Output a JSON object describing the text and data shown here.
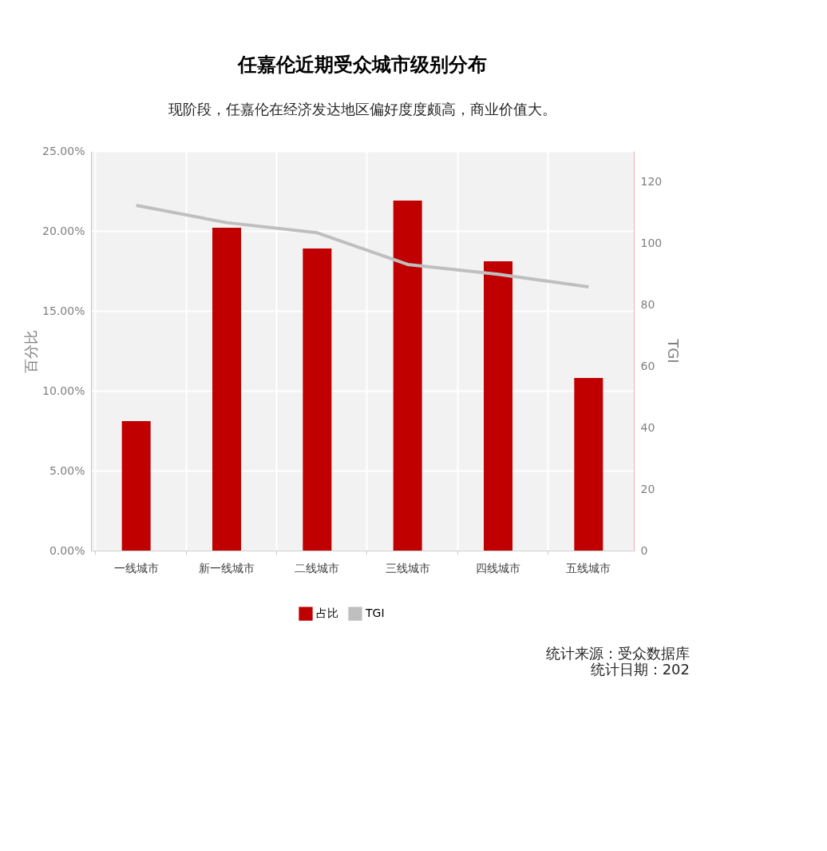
{
  "chart_data": {
    "type": "bar",
    "title": "任嘉伦近期受众城市级别分布",
    "subtitle": "现阶段，任嘉伦在经济发达地区偏好度度颇高，商业价值大。",
    "ylabel": "百分比",
    "y2label": "TGI",
    "categories": [
      "一线城市",
      "新一线城市",
      "二线城市",
      "三线城市",
      "四线城市",
      "五线城市"
    ],
    "series": [
      {
        "name": "占比",
        "color": "#c00000",
        "values": [
          8.1,
          20.2,
          18.9,
          21.9,
          18.1,
          10.8
        ]
      },
      {
        "name": "TGI",
        "type": "line",
        "axis": "y2",
        "color": "#bfbfbf",
        "values": [
          112.3,
          106.7,
          103.4,
          93.1,
          89.9,
          85.8
        ]
      }
    ],
    "ylim": [
      0,
      25
    ],
    "yticks": [
      {
        "value": 0,
        "label": "0.00%"
      },
      {
        "value": 5,
        "label": "5.00%"
      },
      {
        "value": 10,
        "label": "10.00%"
      },
      {
        "value": 15,
        "label": "15.00%"
      },
      {
        "value": 20,
        "label": "20.00%"
      },
      {
        "value": 25,
        "label": "25.00%"
      }
    ],
    "y2lim": [
      0,
      130
    ],
    "y2ticks": [
      0,
      20,
      40,
      60,
      80,
      100,
      120
    ],
    "grid": true,
    "legend": "bottom",
    "marker": "none",
    "annotations": [
      "统计来源：受众数据库",
      "统计日期：202"
    ]
  }
}
